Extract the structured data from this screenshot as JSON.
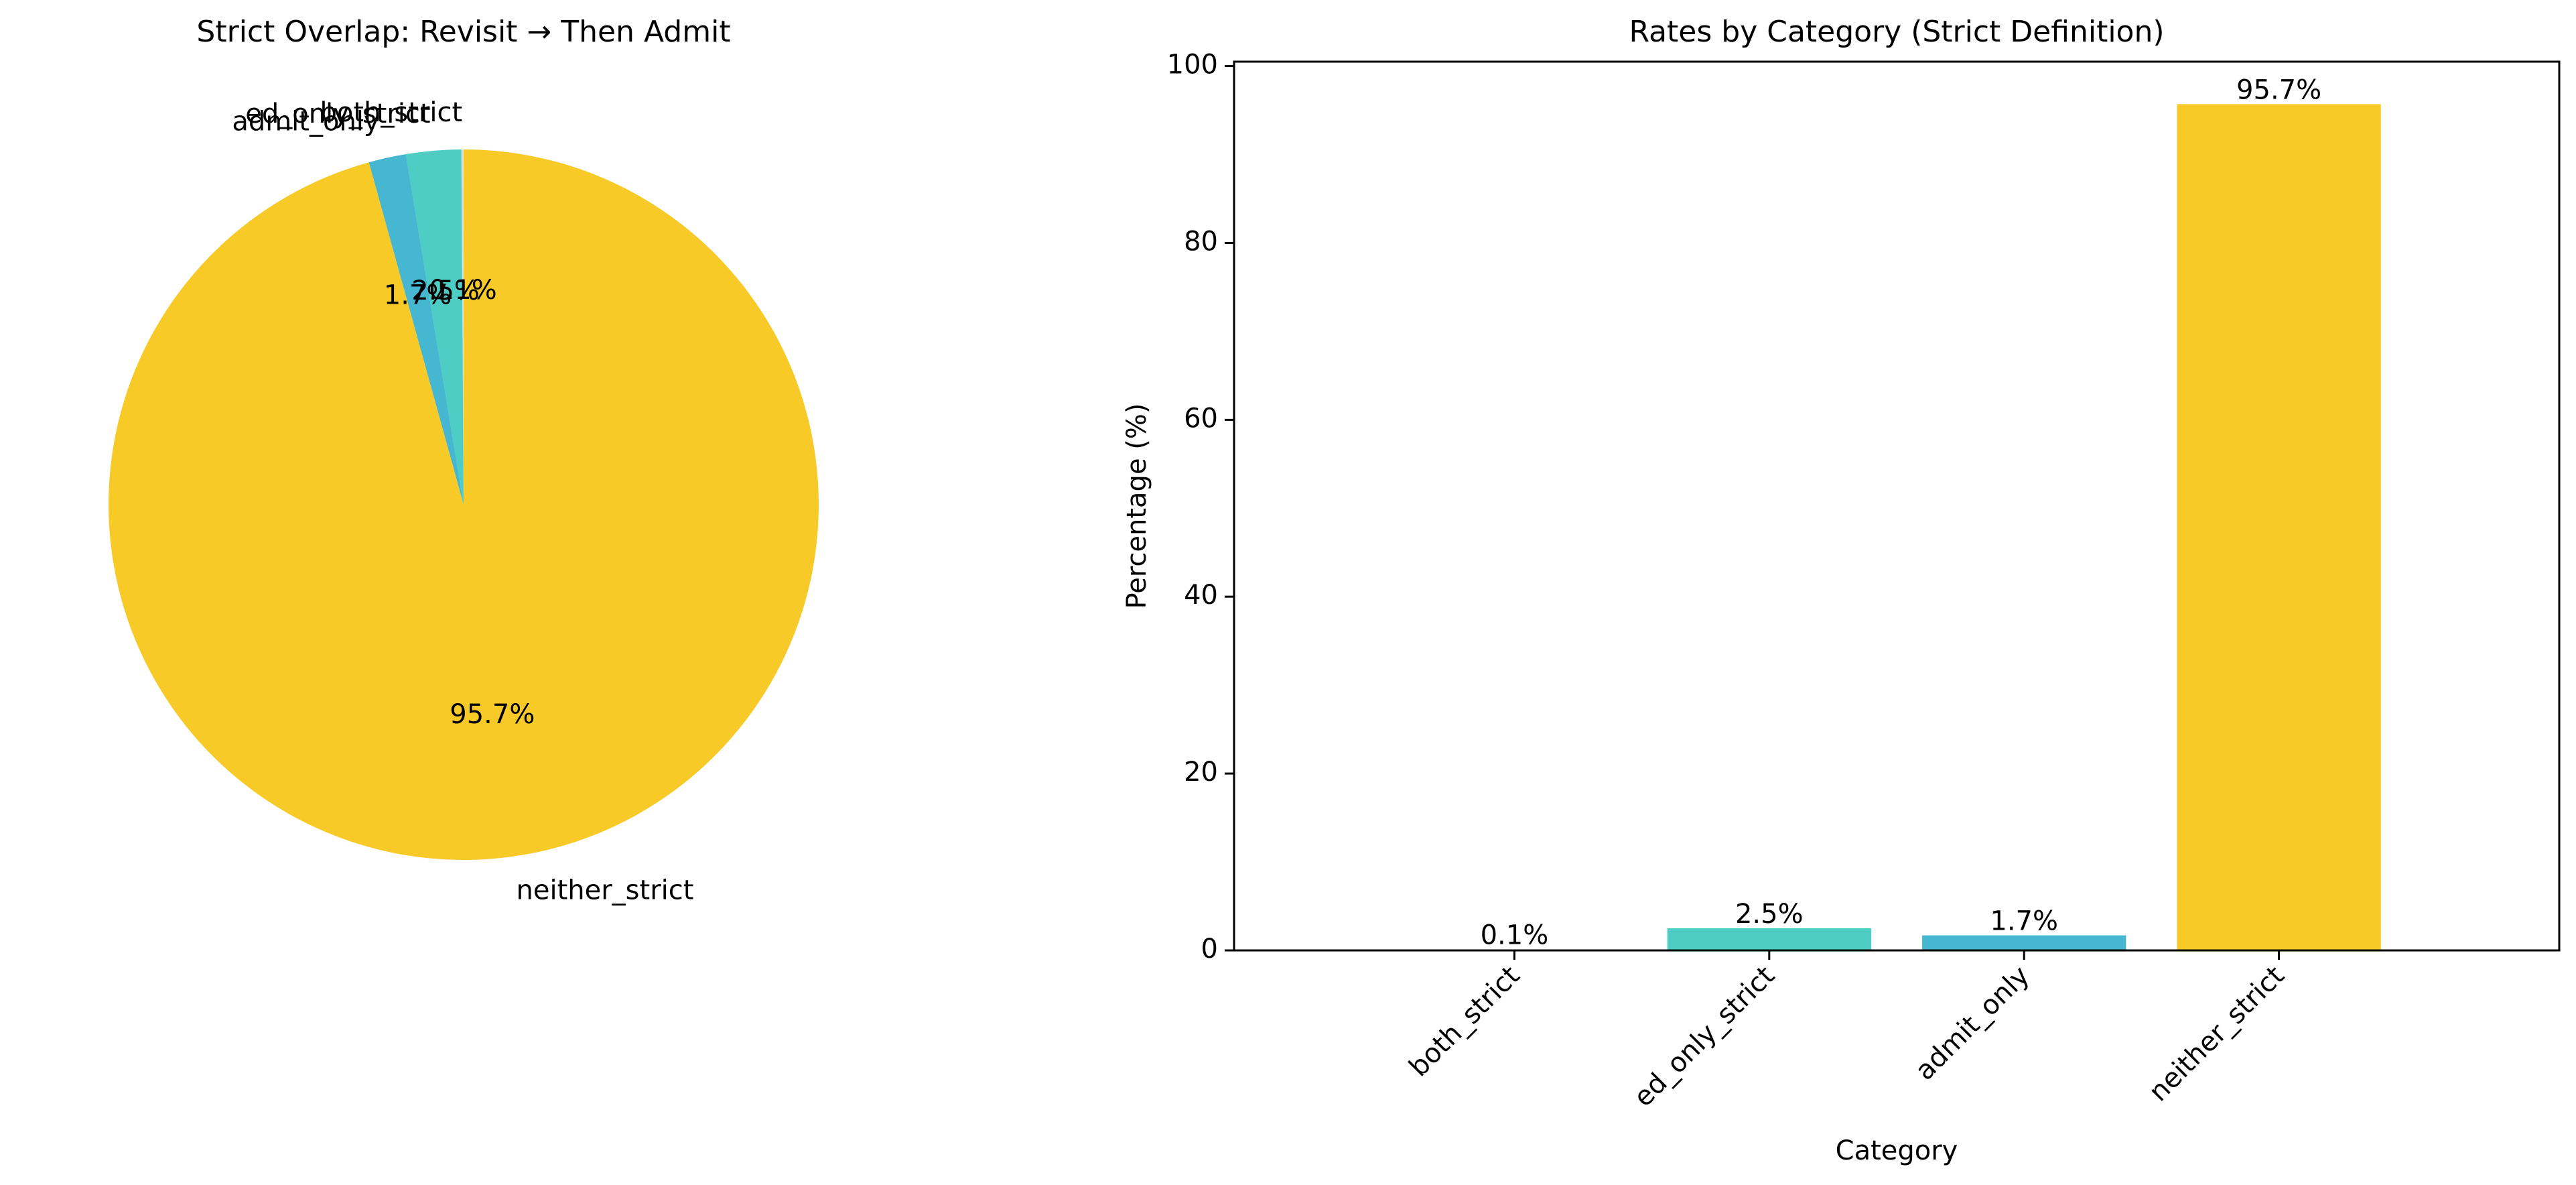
{
  "chart_data": [
    {
      "type": "pie",
      "title": "Strict Overlap: Revisit → Then Admit",
      "labels": [
        "both_strict",
        "ed_only_strict",
        "admit_only",
        "neither_strict"
      ],
      "values": [
        0.1,
        2.5,
        1.7,
        95.7
      ],
      "value_labels": [
        "0.1%",
        "2.5%",
        "1.7%",
        "95.7%"
      ],
      "colors": [
        "#dedede",
        "#4ecdc4",
        "#45b7d1",
        "#f7ca28"
      ],
      "start_angle": 90,
      "direction": "counterclockwise"
    },
    {
      "type": "bar",
      "title": "Rates by Category (Strict Definition)",
      "xlabel": "Category",
      "ylabel": "Percentage (%)",
      "categories": [
        "both_strict",
        "ed_only_strict",
        "admit_only",
        "neither_strict"
      ],
      "values": [
        0.1,
        2.5,
        1.7,
        95.7
      ],
      "value_labels": [
        "0.1%",
        "2.5%",
        "1.7%",
        "95.7%"
      ],
      "colors": [
        "#dedede",
        "#4ecdc4",
        "#45b7d1",
        "#f7ca28"
      ],
      "ylim": [
        0,
        100.5
      ],
      "yticks": [
        0,
        20,
        40,
        60,
        80,
        100
      ],
      "ytick_labels": [
        "0",
        "20",
        "40",
        "60",
        "80",
        "100"
      ],
      "grid": false,
      "xtick_rotation": 45
    }
  ]
}
